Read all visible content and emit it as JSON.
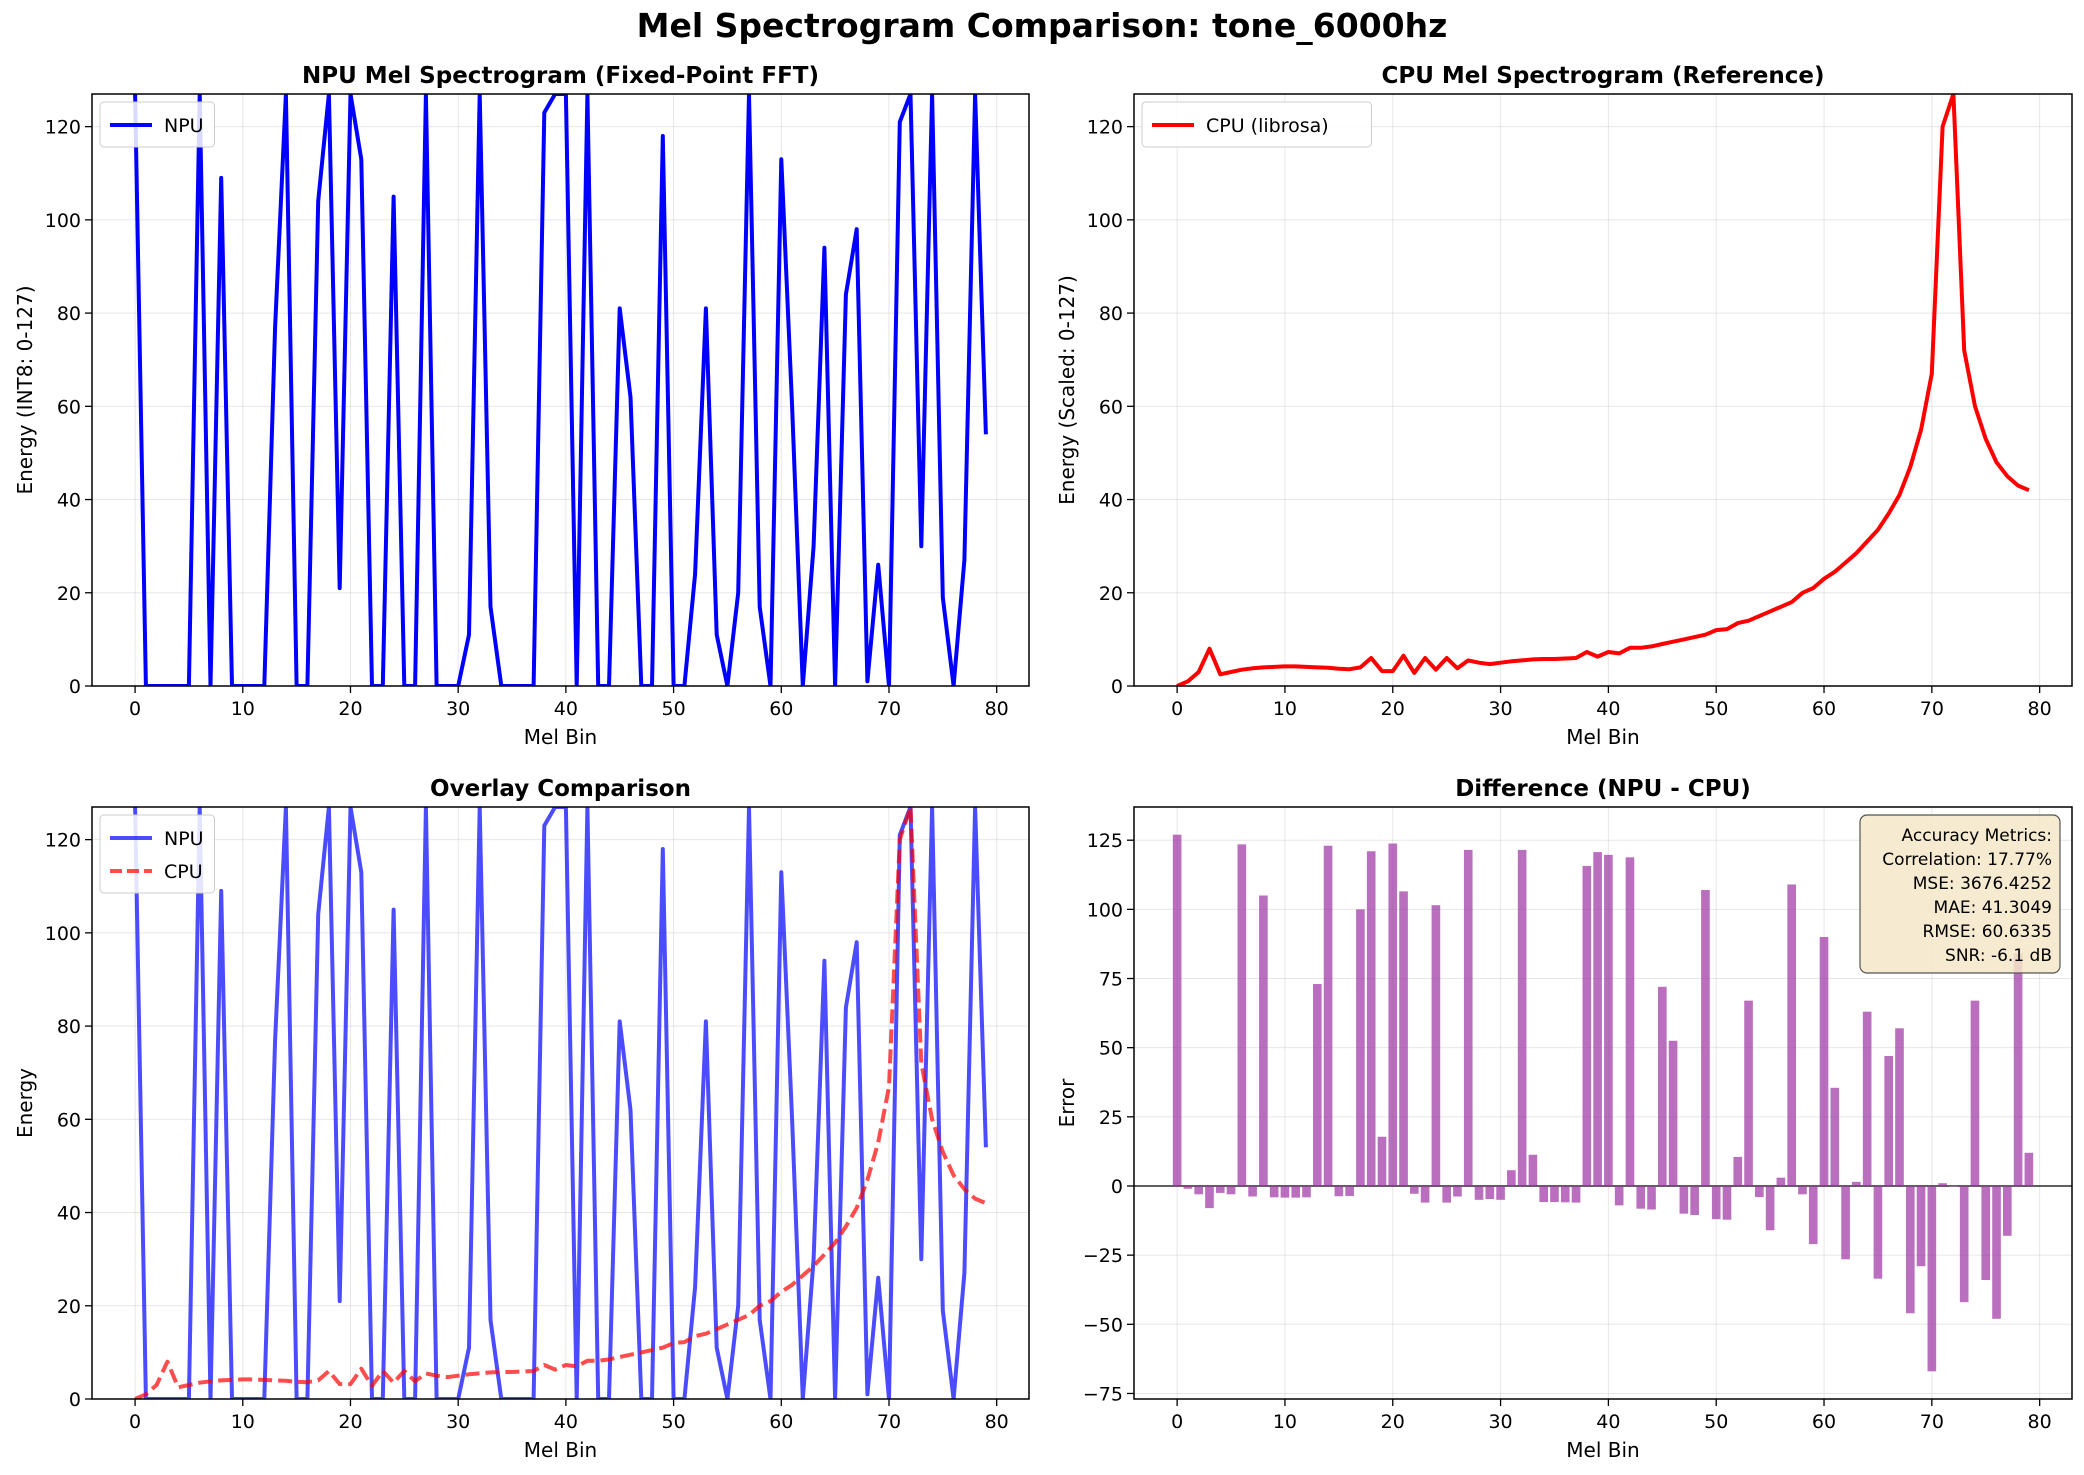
{
  "figure": {
    "title": "Mel Spectrogram Comparison: tone_6000hz"
  },
  "chart_data": [
    {
      "type": "line",
      "title": "NPU Mel Spectrogram (Fixed-Point FFT)",
      "xlabel": "Mel Bin",
      "ylabel": "Energy (INT8: 0-127)",
      "xlim": [
        -4,
        83
      ],
      "ylim": [
        0,
        127
      ],
      "xticks": [
        0,
        10,
        20,
        30,
        40,
        50,
        60,
        70,
        80
      ],
      "yticks": [
        0,
        20,
        40,
        60,
        80,
        100,
        120
      ],
      "grid": true,
      "legend": "upper-left",
      "series": [
        {
          "name": "NPU",
          "color": "#0000ff",
          "style": "solid",
          "values": [
            127,
            0,
            0,
            0,
            0,
            0,
            127,
            0,
            109,
            0,
            0,
            0,
            0,
            77,
            127,
            0,
            0,
            104,
            127,
            21,
            127,
            113,
            0,
            0,
            105,
            0,
            0,
            127,
            0,
            0,
            0,
            11,
            127,
            17,
            0,
            0,
            0,
            0,
            123,
            127,
            127,
            0,
            127,
            0,
            0,
            81,
            62,
            0,
            0,
            118,
            0,
            0,
            24,
            81,
            11,
            0,
            20,
            127,
            17,
            0,
            113,
            60,
            0,
            30,
            94,
            0,
            84,
            98,
            1,
            26,
            0,
            121,
            127,
            30,
            127,
            19,
            0,
            27,
            127,
            54
          ]
        }
      ]
    },
    {
      "type": "line",
      "title": "CPU Mel Spectrogram (Reference)",
      "xlabel": "Mel Bin",
      "ylabel": "Energy (Scaled: 0-127)",
      "xlim": [
        -4,
        83
      ],
      "ylim": [
        0,
        127
      ],
      "xticks": [
        0,
        10,
        20,
        30,
        40,
        50,
        60,
        70,
        80
      ],
      "yticks": [
        0,
        20,
        40,
        60,
        80,
        100,
        120
      ],
      "grid": true,
      "legend": "upper-left",
      "series": [
        {
          "name": "CPU (librosa)",
          "color": "#ff0000",
          "style": "solid",
          "values": [
            0,
            1,
            3,
            8,
            2.5,
            3,
            3.5,
            3.8,
            4,
            4.1,
            4.2,
            4.2,
            4.1,
            4,
            3.9,
            3.7,
            3.6,
            4,
            6,
            3.2,
            3.2,
            6.5,
            2.8,
            6,
            3.5,
            6,
            3.8,
            5.5,
            5,
            4.7,
            5,
            5.3,
            5.5,
            5.7,
            5.8,
            5.8,
            5.9,
            6,
            7.3,
            6.3,
            7.3,
            7,
            8.2,
            8.2,
            8.5,
            9,
            9.5,
            10,
            10.5,
            11,
            12,
            12.2,
            13.5,
            14,
            15,
            16,
            17,
            18,
            20,
            21,
            23,
            24.5,
            26.5,
            28.5,
            31,
            33.5,
            37,
            41,
            47,
            55,
            67,
            120,
            127,
            72,
            60,
            53,
            48,
            45,
            43,
            42
          ]
        }
      ]
    },
    {
      "type": "line",
      "title": "Overlay Comparison",
      "xlabel": "Mel Bin",
      "ylabel": "Energy",
      "xlim": [
        -4,
        83
      ],
      "ylim": [
        0,
        127
      ],
      "xticks": [
        0,
        10,
        20,
        30,
        40,
        50,
        60,
        70,
        80
      ],
      "yticks": [
        0,
        20,
        40,
        60,
        80,
        100,
        120
      ],
      "grid": true,
      "legend": "upper-left",
      "series": [
        {
          "name": "NPU",
          "color": "#0000ff",
          "style": "solid",
          "alpha": 0.7,
          "same_as": "NPU"
        },
        {
          "name": "CPU",
          "color": "#ff0000",
          "style": "dashed",
          "alpha": 0.7,
          "same_as": "CPU (librosa)"
        }
      ]
    },
    {
      "type": "bar",
      "title": "Difference (NPU - CPU)",
      "xlabel": "Mel Bin",
      "ylabel": "Error",
      "xlim": [
        -4,
        83
      ],
      "ylim": [
        -77,
        137
      ],
      "xticks": [
        0,
        10,
        20,
        30,
        40,
        50,
        60,
        70,
        80
      ],
      "yticks": [
        -75,
        -50,
        -25,
        0,
        25,
        50,
        75,
        100,
        125
      ],
      "grid": true,
      "bar_color": "#9b30a3",
      "values": [
        127,
        -1,
        -3,
        -8,
        -2.5,
        -3,
        123.5,
        -3.8,
        105,
        -4.1,
        -4.2,
        -4.2,
        -4.1,
        73,
        123,
        -3.7,
        -3.6,
        100,
        121,
        17.8,
        123.8,
        106.5,
        -2.8,
        -6,
        101.5,
        -6,
        -3.8,
        121.5,
        -5,
        -4.7,
        -5,
        5.7,
        121.5,
        11.3,
        -5.8,
        -5.8,
        -5.9,
        -6,
        115.7,
        120.7,
        119.7,
        -7,
        118.8,
        -8.2,
        -8.5,
        72,
        52.5,
        -10,
        -10.5,
        107,
        -12,
        -12.2,
        10.5,
        67,
        -4,
        -16,
        3,
        109,
        -3,
        -21,
        90,
        35.5,
        -26.5,
        1.5,
        63,
        -33.5,
        47,
        57,
        -46,
        -29,
        -67,
        1,
        0,
        -42,
        67,
        -34,
        -48,
        -18,
        84,
        12
      ],
      "annotation": {
        "lines": [
          "Accuracy Metrics:",
          "Correlation: 17.77%",
          "MSE: 3676.4252",
          "MAE: 41.3049",
          "RMSE: 60.6335",
          "SNR: -6.1 dB"
        ],
        "placement": "top-right",
        "box_color": "#f5e6c8"
      }
    }
  ]
}
